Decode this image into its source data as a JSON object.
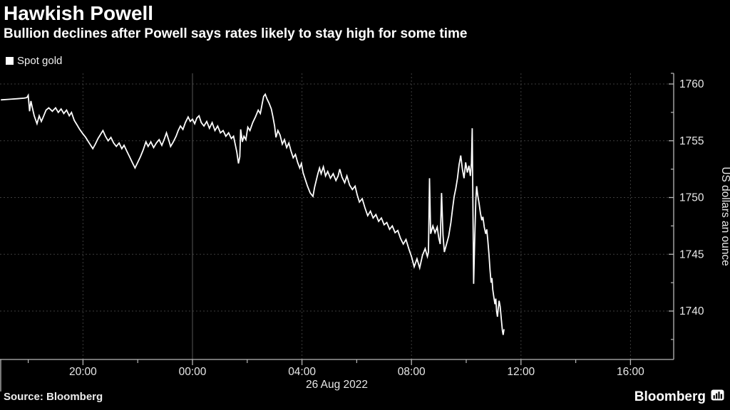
{
  "header": {
    "title": "Hawkish Powell",
    "subtitle": "Bullion declines after Powell says rates likely to stay high for some time"
  },
  "legend": {
    "label": "Spot gold",
    "marker": "square"
  },
  "footer": {
    "source": "Source: Bloomberg",
    "brand": "Bloomberg",
    "brand_icon": "bloomberg-bars-icon"
  },
  "colors": {
    "background": "#000000",
    "line": "#ffffff",
    "grid": "#3c3c3c",
    "day_separator": "#565656",
    "axis": "#b8b8b8",
    "tick_text": "#e8e8e8",
    "title_text": "#ffffff"
  },
  "chart_data": {
    "type": "line",
    "title": "Hawkish Powell",
    "subtitle": "Bullion declines after Powell says rates likely to stay high for some time",
    "ylabel": "US dollars an ounce",
    "xlabel": "26 Aug 2022",
    "grid": "dotted",
    "legend_position": "top-left",
    "x": {
      "date_label": "26 Aug 2022",
      "tick_labels": [
        "20:00",
        "00:00",
        "04:00",
        "08:00",
        "12:00",
        "16:00"
      ],
      "tick_hours": [
        -4,
        0,
        4,
        8,
        12,
        16
      ],
      "minor_tick_hours": [
        -6,
        -2,
        2,
        6,
        10,
        14
      ],
      "range_hours": [
        -7.05,
        17.6
      ],
      "day_separator_hour": 0,
      "note": "hours relative to midnight 26 Aug 2022; negative = evening of 25 Aug"
    },
    "y": {
      "label": "US dollars an ounce",
      "ticks": [
        1760,
        1755,
        1750,
        1745,
        1740
      ],
      "minor_ticks": [
        1757.5,
        1752.5,
        1747.5,
        1742.5,
        1737.5
      ],
      "range": [
        1736.4,
        1760.9
      ]
    },
    "series": [
      {
        "name": "Spot gold",
        "color": "#ffffff",
        "points": [
          [
            -7.0,
            1758.6
          ],
          [
            -6.7,
            1758.65
          ],
          [
            -6.4,
            1758.7
          ],
          [
            -6.15,
            1758.75
          ],
          [
            -6.05,
            1758.8
          ],
          [
            -6.0,
            1759.0
          ],
          [
            -5.95,
            1757.6
          ],
          [
            -5.9,
            1758.5
          ],
          [
            -5.85,
            1757.9
          ],
          [
            -5.78,
            1757.2
          ],
          [
            -5.68,
            1756.5
          ],
          [
            -5.6,
            1757.2
          ],
          [
            -5.52,
            1756.7
          ],
          [
            -5.45,
            1757.1
          ],
          [
            -5.35,
            1757.7
          ],
          [
            -5.25,
            1757.9
          ],
          [
            -5.12,
            1757.6
          ],
          [
            -5.0,
            1757.9
          ],
          [
            -4.9,
            1757.5
          ],
          [
            -4.8,
            1757.8
          ],
          [
            -4.7,
            1757.4
          ],
          [
            -4.6,
            1757.7
          ],
          [
            -4.5,
            1757.2
          ],
          [
            -4.42,
            1757.5
          ],
          [
            -4.32,
            1756.8
          ],
          [
            -4.22,
            1756.4
          ],
          [
            -4.12,
            1756.0
          ],
          [
            -4.0,
            1755.6
          ],
          [
            -3.9,
            1755.3
          ],
          [
            -3.8,
            1754.9
          ],
          [
            -3.72,
            1754.6
          ],
          [
            -3.64,
            1754.3
          ],
          [
            -3.55,
            1754.7
          ],
          [
            -3.45,
            1755.2
          ],
          [
            -3.35,
            1755.6
          ],
          [
            -3.27,
            1755.9
          ],
          [
            -3.18,
            1755.4
          ],
          [
            -3.08,
            1755.0
          ],
          [
            -2.98,
            1755.3
          ],
          [
            -2.88,
            1754.8
          ],
          [
            -2.78,
            1754.5
          ],
          [
            -2.68,
            1754.8
          ],
          [
            -2.58,
            1754.3
          ],
          [
            -2.5,
            1754.6
          ],
          [
            -2.4,
            1754.1
          ],
          [
            -2.3,
            1753.6
          ],
          [
            -2.2,
            1753.1
          ],
          [
            -2.1,
            1752.6
          ],
          [
            -2.0,
            1753.1
          ],
          [
            -1.9,
            1753.6
          ],
          [
            -1.8,
            1754.2
          ],
          [
            -1.7,
            1754.9
          ],
          [
            -1.62,
            1754.5
          ],
          [
            -1.52,
            1754.9
          ],
          [
            -1.42,
            1754.4
          ],
          [
            -1.32,
            1754.8
          ],
          [
            -1.22,
            1755.1
          ],
          [
            -1.12,
            1754.6
          ],
          [
            -1.02,
            1755.2
          ],
          [
            -0.95,
            1755.7
          ],
          [
            -0.86,
            1755.0
          ],
          [
            -0.8,
            1754.5
          ],
          [
            -0.7,
            1754.9
          ],
          [
            -0.6,
            1755.4
          ],
          [
            -0.52,
            1755.9
          ],
          [
            -0.44,
            1756.3
          ],
          [
            -0.35,
            1756.0
          ],
          [
            -0.26,
            1756.6
          ],
          [
            -0.16,
            1757.1
          ],
          [
            -0.08,
            1756.7
          ],
          [
            0.0,
            1756.9
          ],
          [
            0.08,
            1756.5
          ],
          [
            0.16,
            1757.0
          ],
          [
            0.24,
            1757.2
          ],
          [
            0.32,
            1756.6
          ],
          [
            0.42,
            1756.3
          ],
          [
            0.52,
            1756.7
          ],
          [
            0.62,
            1756.1
          ],
          [
            0.72,
            1756.6
          ],
          [
            0.82,
            1755.9
          ],
          [
            0.92,
            1756.3
          ],
          [
            1.02,
            1755.7
          ],
          [
            1.12,
            1755.9
          ],
          [
            1.22,
            1755.4
          ],
          [
            1.32,
            1755.7
          ],
          [
            1.42,
            1755.2
          ],
          [
            1.5,
            1755.4
          ],
          [
            1.56,
            1754.7
          ],
          [
            1.62,
            1754.0
          ],
          [
            1.68,
            1753.0
          ],
          [
            1.73,
            1753.6
          ],
          [
            1.76,
            1756.0
          ],
          [
            1.82,
            1754.9
          ],
          [
            1.88,
            1755.4
          ],
          [
            1.95,
            1755.1
          ],
          [
            2.02,
            1756.2
          ],
          [
            2.1,
            1755.9
          ],
          [
            2.2,
            1756.6
          ],
          [
            2.3,
            1757.1
          ],
          [
            2.4,
            1757.7
          ],
          [
            2.48,
            1757.4
          ],
          [
            2.55,
            1758.3
          ],
          [
            2.6,
            1758.9
          ],
          [
            2.66,
            1759.1
          ],
          [
            2.72,
            1758.7
          ],
          [
            2.8,
            1758.3
          ],
          [
            2.88,
            1757.8
          ],
          [
            2.94,
            1757.1
          ],
          [
            3.0,
            1756.3
          ],
          [
            3.05,
            1755.3
          ],
          [
            3.12,
            1755.9
          ],
          [
            3.2,
            1755.5
          ],
          [
            3.28,
            1754.7
          ],
          [
            3.36,
            1755.1
          ],
          [
            3.44,
            1754.4
          ],
          [
            3.52,
            1754.8
          ],
          [
            3.6,
            1754.1
          ],
          [
            3.68,
            1753.5
          ],
          [
            3.76,
            1753.8
          ],
          [
            3.84,
            1753.1
          ],
          [
            3.92,
            1752.6
          ],
          [
            3.98,
            1753.0
          ],
          [
            4.04,
            1752.2
          ],
          [
            4.12,
            1751.6
          ],
          [
            4.2,
            1751.0
          ],
          [
            4.3,
            1750.4
          ],
          [
            4.4,
            1750.1
          ],
          [
            4.46,
            1750.9
          ],
          [
            4.52,
            1751.5
          ],
          [
            4.58,
            1752.1
          ],
          [
            4.64,
            1752.6
          ],
          [
            4.7,
            1752.1
          ],
          [
            4.78,
            1752.7
          ],
          [
            4.86,
            1751.9
          ],
          [
            4.94,
            1752.3
          ],
          [
            5.04,
            1751.7
          ],
          [
            5.14,
            1752.1
          ],
          [
            5.24,
            1751.5
          ],
          [
            5.32,
            1751.9
          ],
          [
            5.38,
            1752.5
          ],
          [
            5.46,
            1751.8
          ],
          [
            5.56,
            1751.3
          ],
          [
            5.64,
            1751.9
          ],
          [
            5.74,
            1751.1
          ],
          [
            5.84,
            1750.7
          ],
          [
            5.94,
            1751.0
          ],
          [
            6.02,
            1750.2
          ],
          [
            6.1,
            1749.6
          ],
          [
            6.2,
            1749.9
          ],
          [
            6.3,
            1749.1
          ],
          [
            6.4,
            1748.4
          ],
          [
            6.5,
            1748.8
          ],
          [
            6.6,
            1748.2
          ],
          [
            6.7,
            1748.5
          ],
          [
            6.8,
            1747.9
          ],
          [
            6.9,
            1748.2
          ],
          [
            7.0,
            1747.6
          ],
          [
            7.1,
            1747.8
          ],
          [
            7.2,
            1747.2
          ],
          [
            7.3,
            1747.5
          ],
          [
            7.4,
            1746.9
          ],
          [
            7.5,
            1747.1
          ],
          [
            7.6,
            1746.4
          ],
          [
            7.7,
            1745.9
          ],
          [
            7.8,
            1746.3
          ],
          [
            7.9,
            1745.5
          ],
          [
            8.0,
            1744.8
          ],
          [
            8.1,
            1743.9
          ],
          [
            8.2,
            1744.6
          ],
          [
            8.3,
            1743.8
          ],
          [
            8.4,
            1744.9
          ],
          [
            8.5,
            1745.5
          ],
          [
            8.58,
            1744.8
          ],
          [
            8.62,
            1745.2
          ],
          [
            8.66,
            1751.7
          ],
          [
            8.7,
            1746.8
          ],
          [
            8.78,
            1747.5
          ],
          [
            8.86,
            1746.9
          ],
          [
            8.94,
            1747.4
          ],
          [
            9.0,
            1746.4
          ],
          [
            9.05,
            1745.9
          ],
          [
            9.1,
            1750.4
          ],
          [
            9.15,
            1746.7
          ],
          [
            9.2,
            1745.2
          ],
          [
            9.28,
            1745.9
          ],
          [
            9.36,
            1746.6
          ],
          [
            9.44,
            1747.8
          ],
          [
            9.5,
            1749.0
          ],
          [
            9.56,
            1750.1
          ],
          [
            9.62,
            1750.8
          ],
          [
            9.68,
            1751.7
          ],
          [
            9.74,
            1752.9
          ],
          [
            9.8,
            1753.7
          ],
          [
            9.86,
            1752.5
          ],
          [
            9.92,
            1751.7
          ],
          [
            9.98,
            1753.1
          ],
          [
            10.04,
            1752.2
          ],
          [
            10.1,
            1752.8
          ],
          [
            10.15,
            1751.9
          ],
          [
            10.19,
            1753.0
          ],
          [
            10.22,
            1756.1
          ],
          [
            10.27,
            1742.4
          ],
          [
            10.31,
            1746.3
          ],
          [
            10.35,
            1749.7
          ],
          [
            10.38,
            1751.0
          ],
          [
            10.42,
            1750.2
          ],
          [
            10.47,
            1749.5
          ],
          [
            10.52,
            1748.6
          ],
          [
            10.57,
            1748.0
          ],
          [
            10.61,
            1748.3
          ],
          [
            10.66,
            1747.4
          ],
          [
            10.71,
            1746.8
          ],
          [
            10.75,
            1747.2
          ],
          [
            10.79,
            1746.2
          ],
          [
            10.83,
            1745.0
          ],
          [
            10.87,
            1743.6
          ],
          [
            10.91,
            1742.5
          ],
          [
            10.94,
            1742.9
          ],
          [
            10.97,
            1741.9
          ],
          [
            11.01,
            1741.2
          ],
          [
            11.05,
            1740.6
          ],
          [
            11.08,
            1741.1
          ],
          [
            11.11,
            1740.0
          ],
          [
            11.14,
            1739.5
          ],
          [
            11.17,
            1740.2
          ],
          [
            11.2,
            1740.9
          ],
          [
            11.24,
            1740.4
          ],
          [
            11.28,
            1739.3
          ],
          [
            11.32,
            1738.3
          ],
          [
            11.35,
            1737.9
          ],
          [
            11.38,
            1738.4
          ]
        ]
      }
    ]
  }
}
